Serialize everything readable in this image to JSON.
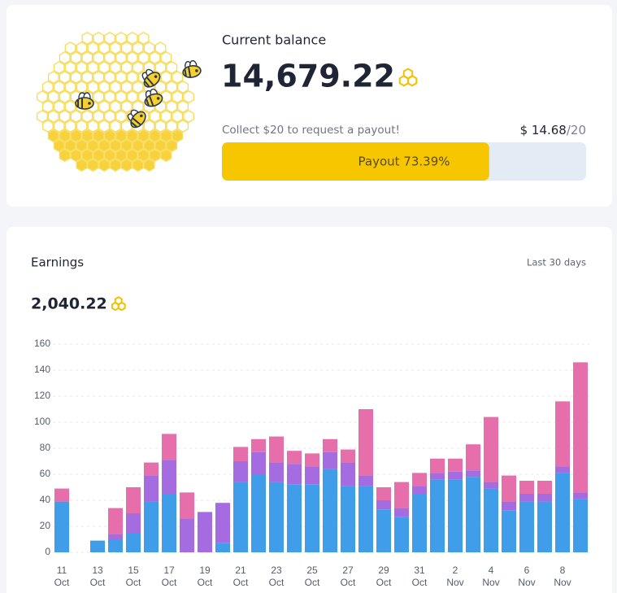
{
  "balance_card": {
    "title": "Current balance",
    "balance": "14,679.22",
    "payout_note": "Collect $20 to request a payout!",
    "payout_amount": "$ 14.68",
    "payout_target": "/20",
    "progress_label": "Payout 73.39%",
    "progress_percent": 73.39
  },
  "earnings_card": {
    "title": "Earnings",
    "period": "Last 30 days",
    "total": "2,040.22"
  },
  "chart_data": {
    "type": "stacked_bar",
    "categories": [
      "11 Oct",
      null,
      "13 Oct",
      null,
      "15 Oct",
      null,
      "17 Oct",
      null,
      "19 Oct",
      null,
      "21 Oct",
      null,
      "23 Oct",
      null,
      "25 Oct",
      null,
      "27 Oct",
      null,
      "29 Oct",
      null,
      "31 Oct",
      null,
      "2 Nov",
      null,
      "4 Nov",
      null,
      "6 Nov",
      null,
      "8 Nov",
      null
    ],
    "series": [
      {
        "color": "#3f9de9",
        "values": [
          39,
          0,
          9,
          10,
          15,
          39,
          45,
          0,
          0,
          7,
          54,
          60,
          54,
          52,
          52,
          64,
          51,
          51,
          33,
          27,
          45,
          56,
          56,
          58,
          49,
          32,
          39,
          39,
          61,
          41
        ]
      },
      {
        "color": "#a56ce2",
        "values": [
          0,
          0,
          0,
          4,
          15,
          20,
          26,
          26,
          31,
          31,
          16,
          17,
          15,
          16,
          14,
          13,
          18,
          8,
          7,
          7,
          6,
          5,
          6,
          5,
          5,
          7,
          6,
          6,
          5,
          5
        ]
      },
      {
        "color": "#e66fab",
        "values": [
          10,
          0,
          0,
          20,
          20,
          10,
          20,
          20,
          0,
          0,
          11,
          10,
          20,
          10,
          10,
          10,
          10,
          51,
          10,
          20,
          10,
          11,
          10,
          20,
          50,
          20,
          10,
          10,
          50,
          100
        ]
      }
    ],
    "ylim": [
      0,
      160
    ],
    "yticks": [
      0,
      20,
      40,
      60,
      80,
      100,
      120,
      140,
      160
    ],
    "grid": true
  }
}
